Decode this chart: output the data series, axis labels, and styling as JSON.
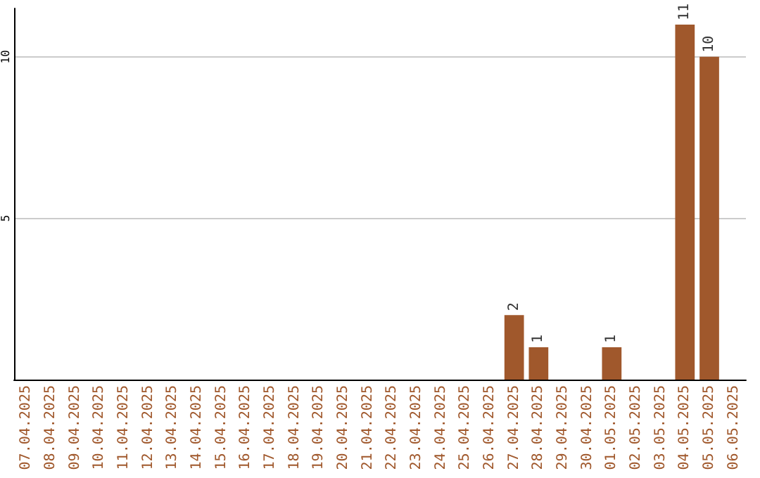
{
  "chart_data": {
    "type": "bar",
    "categories": [
      "07.04.2025",
      "08.04.2025",
      "09.04.2025",
      "10.04.2025",
      "11.04.2025",
      "12.04.2025",
      "13.04.2025",
      "14.04.2025",
      "15.04.2025",
      "16.04.2025",
      "17.04.2025",
      "18.04.2025",
      "19.04.2025",
      "20.04.2025",
      "21.04.2025",
      "22.04.2025",
      "23.04.2025",
      "24.04.2025",
      "25.04.2025",
      "26.04.2025",
      "27.04.2025",
      "28.04.2025",
      "29.04.2025",
      "30.04.2025",
      "01.05.2025",
      "02.05.2025",
      "03.05.2025",
      "04.05.2025",
      "05.05.2025",
      "06.05.2025"
    ],
    "values": [
      0,
      0,
      0,
      0,
      0,
      0,
      0,
      0,
      0,
      0,
      0,
      0,
      0,
      0,
      0,
      0,
      0,
      0,
      0,
      0,
      2,
      1,
      0,
      0,
      1,
      0,
      0,
      11,
      10,
      0
    ],
    "value_labels": [
      null,
      null,
      null,
      null,
      null,
      null,
      null,
      null,
      null,
      null,
      null,
      null,
      null,
      null,
      null,
      null,
      null,
      null,
      null,
      null,
      "2",
      "1",
      null,
      null,
      "1",
      null,
      null,
      "11",
      "10",
      null
    ],
    "color": "#a0582c",
    "ylim": [
      0,
      11.5
    ],
    "yticks": [
      5,
      10
    ],
    "grid": "y"
  }
}
